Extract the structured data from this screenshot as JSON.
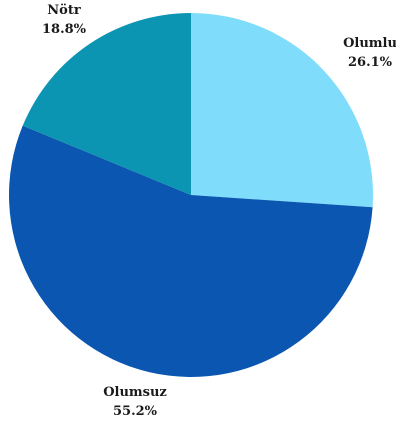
{
  "chart_data": {
    "type": "pie",
    "title": "",
    "start": "top",
    "direction": "clockwise",
    "slices": [
      {
        "label": "Olumlu",
        "value": 26.1,
        "value_label": "26.1%",
        "color": "#7fdcfb"
      },
      {
        "label": "Olumsuz",
        "value": 55.2,
        "value_label": "55.2%",
        "color": "#0a56b0"
      },
      {
        "label": "Nötr",
        "value": 18.8,
        "value_label": "18.8%",
        "color": "#0b95b3"
      }
    ]
  }
}
